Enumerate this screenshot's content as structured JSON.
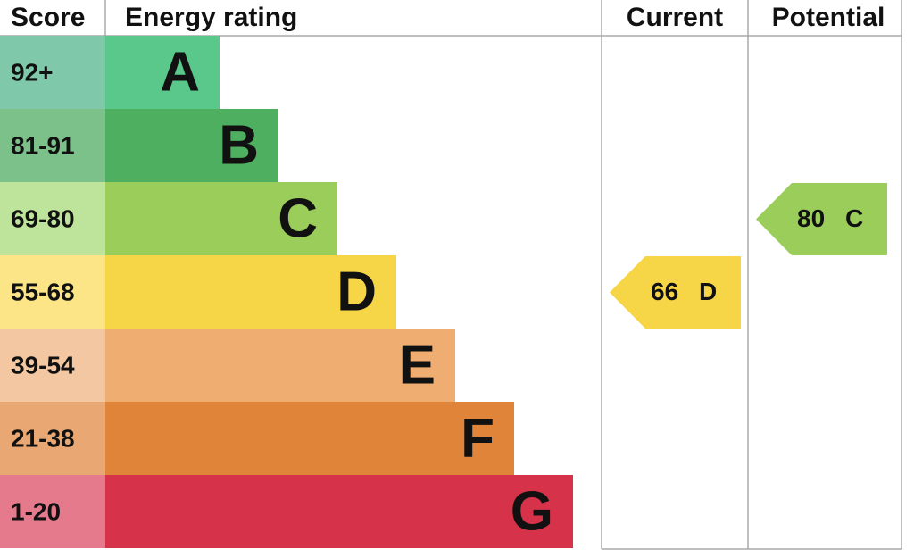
{
  "header": {
    "score": "Score",
    "rating": "Energy rating",
    "current": "Current",
    "potential": "Potential"
  },
  "bands": [
    {
      "score": "92+",
      "letter": "A",
      "score_color": "#7fc8a9",
      "color": "#5ac88a"
    },
    {
      "score": "81-91",
      "letter": "B",
      "score_color": "#7cc08a",
      "color": "#4daf5f"
    },
    {
      "score": "69-80",
      "letter": "C",
      "score_color": "#bee39a",
      "color": "#9acd5a"
    },
    {
      "score": "55-68",
      "letter": "D",
      "score_color": "#fbe586",
      "color": "#f6d547"
    },
    {
      "score": "39-54",
      "letter": "E",
      "score_color": "#f4c7a3",
      "color": "#efad71"
    },
    {
      "score": "21-38",
      "letter": "F",
      "score_color": "#e9a873",
      "color": "#e0843a"
    },
    {
      "score": "1-20",
      "letter": "G",
      "score_color": "#e57a8c",
      "color": "#d6334a"
    }
  ],
  "current": {
    "value": 66,
    "letter": "D"
  },
  "potential": {
    "value": 80,
    "letter": "C"
  }
}
